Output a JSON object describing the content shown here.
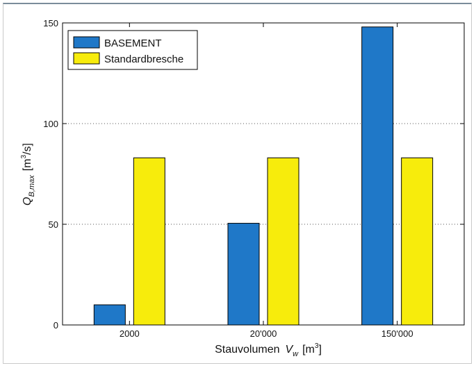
{
  "chart_data": {
    "type": "bar",
    "categories": [
      "2000",
      "20'000",
      "150'000"
    ],
    "series": [
      {
        "name": "BASEMENT",
        "values": [
          10,
          50.5,
          148
        ],
        "color": "#1f78c8"
      },
      {
        "name": "Standardbresche",
        "values": [
          83,
          83,
          83
        ],
        "color": "#f7ec0c"
      }
    ],
    "ylim": [
      0,
      150
    ],
    "yticks": [
      0,
      50,
      100,
      150
    ],
    "grid": "horizontal dotted",
    "legend_position": "top-left",
    "xlabel": {
      "main": "Stauvolumen",
      "var": "V",
      "sub": "w",
      "unit_open": "[m",
      "unit_sup": "3",
      "unit_close": "]"
    },
    "ylabel": {
      "var": "Q",
      "sub": "B,max",
      "unit_open": "[m",
      "unit_sup": "3",
      "unit_close": "/s]"
    }
  }
}
